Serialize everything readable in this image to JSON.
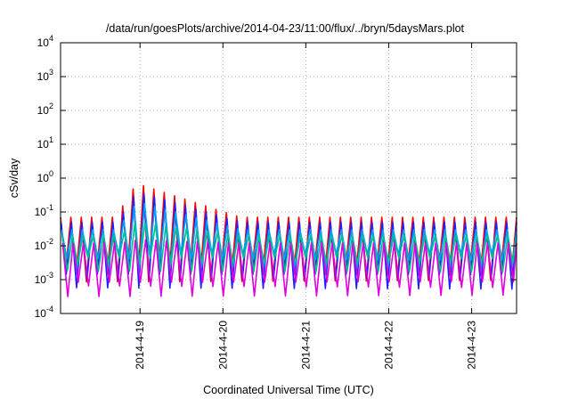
{
  "chart_data": {
    "type": "line",
    "title": "/data/run/goesPlots/archive/2014-04-23/11:00/flux/../bryn/5daysMars.plot",
    "xlabel": "Coordinated Universal Time (UTC)",
    "ylabel": "cSv/day",
    "x_range": [
      "2014-04-18 01:00",
      "2014-04-23 13:00"
    ],
    "ylim": [
      0.0001,
      10000
    ],
    "y_scale": "log",
    "grid": true,
    "x_ticks": [
      "2014-4-19",
      "2014-4-20",
      "2014-4-21",
      "2014-4-22",
      "2014-4-23"
    ],
    "y_ticks": [
      {
        "base": "10",
        "exp": "-4"
      },
      {
        "base": "10",
        "exp": "-3"
      },
      {
        "base": "10",
        "exp": "-2"
      },
      {
        "base": "10",
        "exp": "-1"
      },
      {
        "base": "10",
        "exp": "0"
      },
      {
        "base": "10",
        "exp": "1"
      },
      {
        "base": "10",
        "exp": "2"
      },
      {
        "base": "10",
        "exp": "3"
      },
      {
        "base": "10",
        "exp": "4"
      }
    ],
    "series": [
      {
        "color": "#ff0000",
        "peak": 0.07,
        "trough": 0.0015,
        "event_peak": 0.7
      },
      {
        "color": "#2020ff",
        "peak": 0.05,
        "trough": 0.001,
        "event_peak": 0.4
      },
      {
        "color": "#00a0ff",
        "peak": 0.03,
        "trough": 0.004,
        "event_peak": 0.2
      },
      {
        "color": "#00c090",
        "peak": 0.02,
        "trough": 0.003,
        "event_peak": 0.05
      },
      {
        "color": "#e000e0",
        "peak": 0.012,
        "trough": 0.0006,
        "event_peak": 0.015
      }
    ],
    "oscillation_period_hours": 3
  }
}
